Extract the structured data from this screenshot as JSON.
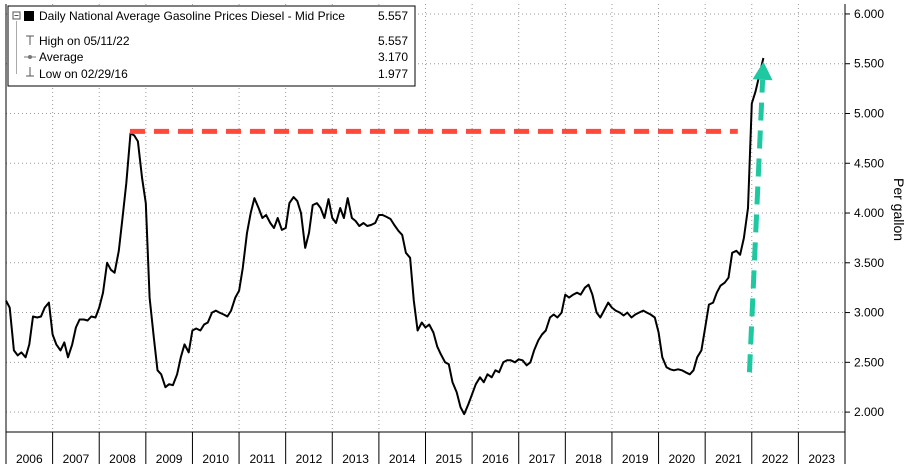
{
  "chart_data": {
    "type": "line",
    "ylabel": "Per gallon",
    "ylim": [
      1.8,
      6.1
    ],
    "yticks": [
      "2.000",
      "2.500",
      "3.000",
      "3.500",
      "4.000",
      "4.500",
      "5.000",
      "5.500",
      "6.000"
    ],
    "ytick_values": [
      2.0,
      2.5,
      3.0,
      3.5,
      4.0,
      4.5,
      5.0,
      5.5,
      6.0
    ],
    "xlim": [
      2005.5,
      2023.5
    ],
    "years": [
      "2006",
      "2007",
      "2008",
      "2009",
      "2010",
      "2011",
      "2012",
      "2013",
      "2014",
      "2015",
      "2016",
      "2017",
      "2018",
      "2019",
      "2020",
      "2021",
      "2022",
      "2023"
    ],
    "grid": true,
    "legend": {
      "position": "top-left",
      "title": "Daily National Average Gasoline Prices Diesel - Mid Price",
      "title_value": "5.557",
      "rows": [
        {
          "label": "High on 05/11/22",
          "value": "5.557"
        },
        {
          "label": "Average",
          "value": "3.170"
        },
        {
          "label": "Low on 02/29/16",
          "value": "1.977"
        }
      ]
    },
    "series": [
      {
        "color": "#000000",
        "points": [
          [
            2005.5,
            3.12
          ],
          [
            2005.58,
            3.05
          ],
          [
            2005.67,
            2.62
          ],
          [
            2005.75,
            2.57
          ],
          [
            2005.83,
            2.6
          ],
          [
            2005.92,
            2.55
          ],
          [
            2006.0,
            2.68
          ],
          [
            2006.08,
            2.96
          ],
          [
            2006.17,
            2.95
          ],
          [
            2006.25,
            2.96
          ],
          [
            2006.33,
            3.05
          ],
          [
            2006.42,
            3.1
          ],
          [
            2006.5,
            2.78
          ],
          [
            2006.58,
            2.68
          ],
          [
            2006.67,
            2.62
          ],
          [
            2006.75,
            2.7
          ],
          [
            2006.83,
            2.55
          ],
          [
            2006.92,
            2.68
          ],
          [
            2007.0,
            2.85
          ],
          [
            2007.08,
            2.93
          ],
          [
            2007.17,
            2.93
          ],
          [
            2007.25,
            2.92
          ],
          [
            2007.33,
            2.96
          ],
          [
            2007.42,
            2.95
          ],
          [
            2007.5,
            3.05
          ],
          [
            2007.58,
            3.2
          ],
          [
            2007.67,
            3.5
          ],
          [
            2007.75,
            3.43
          ],
          [
            2007.83,
            3.4
          ],
          [
            2007.92,
            3.62
          ],
          [
            2008.0,
            3.95
          ],
          [
            2008.08,
            4.3
          ],
          [
            2008.17,
            4.8
          ],
          [
            2008.25,
            4.78
          ],
          [
            2008.33,
            4.72
          ],
          [
            2008.42,
            4.35
          ],
          [
            2008.5,
            4.1
          ],
          [
            2008.58,
            3.15
          ],
          [
            2008.67,
            2.75
          ],
          [
            2008.75,
            2.42
          ],
          [
            2008.83,
            2.38
          ],
          [
            2008.92,
            2.25
          ],
          [
            2009.0,
            2.28
          ],
          [
            2009.08,
            2.27
          ],
          [
            2009.17,
            2.38
          ],
          [
            2009.25,
            2.55
          ],
          [
            2009.33,
            2.68
          ],
          [
            2009.42,
            2.6
          ],
          [
            2009.5,
            2.82
          ],
          [
            2009.58,
            2.84
          ],
          [
            2009.67,
            2.82
          ],
          [
            2009.75,
            2.88
          ],
          [
            2009.83,
            2.9
          ],
          [
            2009.92,
            3.0
          ],
          [
            2010.0,
            3.02
          ],
          [
            2010.08,
            3.0
          ],
          [
            2010.17,
            2.98
          ],
          [
            2010.25,
            2.96
          ],
          [
            2010.33,
            3.02
          ],
          [
            2010.42,
            3.15
          ],
          [
            2010.5,
            3.22
          ],
          [
            2010.58,
            3.45
          ],
          [
            2010.67,
            3.8
          ],
          [
            2010.75,
            4.0
          ],
          [
            2010.83,
            4.15
          ],
          [
            2010.92,
            4.05
          ],
          [
            2011.0,
            3.95
          ],
          [
            2011.08,
            3.98
          ],
          [
            2011.17,
            3.9
          ],
          [
            2011.25,
            3.85
          ],
          [
            2011.33,
            3.95
          ],
          [
            2011.42,
            3.83
          ],
          [
            2011.5,
            3.85
          ],
          [
            2011.58,
            4.1
          ],
          [
            2011.67,
            4.16
          ],
          [
            2011.75,
            4.12
          ],
          [
            2011.83,
            4.0
          ],
          [
            2011.92,
            3.65
          ],
          [
            2012.0,
            3.8
          ],
          [
            2012.08,
            4.08
          ],
          [
            2012.17,
            4.1
          ],
          [
            2012.25,
            4.05
          ],
          [
            2012.33,
            3.95
          ],
          [
            2012.42,
            4.14
          ],
          [
            2012.5,
            3.95
          ],
          [
            2012.58,
            3.9
          ],
          [
            2012.67,
            4.05
          ],
          [
            2012.75,
            3.95
          ],
          [
            2012.83,
            4.15
          ],
          [
            2012.92,
            3.95
          ],
          [
            2013.0,
            3.92
          ],
          [
            2013.08,
            3.87
          ],
          [
            2013.17,
            3.9
          ],
          [
            2013.25,
            3.87
          ],
          [
            2013.33,
            3.88
          ],
          [
            2013.42,
            3.9
          ],
          [
            2013.5,
            3.98
          ],
          [
            2013.58,
            3.98
          ],
          [
            2013.67,
            3.96
          ],
          [
            2013.75,
            3.94
          ],
          [
            2013.83,
            3.88
          ],
          [
            2013.92,
            3.82
          ],
          [
            2014.0,
            3.78
          ],
          [
            2014.08,
            3.6
          ],
          [
            2014.17,
            3.55
          ],
          [
            2014.25,
            3.12
          ],
          [
            2014.33,
            2.82
          ],
          [
            2014.42,
            2.9
          ],
          [
            2014.5,
            2.85
          ],
          [
            2014.58,
            2.88
          ],
          [
            2014.67,
            2.8
          ],
          [
            2014.75,
            2.66
          ],
          [
            2014.83,
            2.58
          ],
          [
            2014.92,
            2.5
          ],
          [
            2015.0,
            2.48
          ],
          [
            2015.08,
            2.3
          ],
          [
            2015.17,
            2.2
          ],
          [
            2015.25,
            2.05
          ],
          [
            2015.33,
            1.98
          ],
          [
            2015.42,
            2.08
          ],
          [
            2015.5,
            2.18
          ],
          [
            2015.58,
            2.28
          ],
          [
            2015.67,
            2.35
          ],
          [
            2015.75,
            2.3
          ],
          [
            2015.83,
            2.38
          ],
          [
            2015.92,
            2.35
          ],
          [
            2016.0,
            2.42
          ],
          [
            2016.08,
            2.4
          ],
          [
            2016.17,
            2.5
          ],
          [
            2016.25,
            2.52
          ],
          [
            2016.33,
            2.52
          ],
          [
            2016.42,
            2.5
          ],
          [
            2016.5,
            2.53
          ],
          [
            2016.58,
            2.52
          ],
          [
            2016.67,
            2.47
          ],
          [
            2016.75,
            2.5
          ],
          [
            2016.83,
            2.62
          ],
          [
            2016.92,
            2.72
          ],
          [
            2017.0,
            2.78
          ],
          [
            2017.08,
            2.82
          ],
          [
            2017.17,
            2.95
          ],
          [
            2017.25,
            2.98
          ],
          [
            2017.33,
            2.95
          ],
          [
            2017.42,
            3.0
          ],
          [
            2017.5,
            3.18
          ],
          [
            2017.58,
            3.15
          ],
          [
            2017.67,
            3.18
          ],
          [
            2017.75,
            3.2
          ],
          [
            2017.83,
            3.18
          ],
          [
            2017.92,
            3.25
          ],
          [
            2018.0,
            3.28
          ],
          [
            2018.08,
            3.18
          ],
          [
            2018.17,
            3.0
          ],
          [
            2018.25,
            2.95
          ],
          [
            2018.33,
            3.02
          ],
          [
            2018.42,
            3.1
          ],
          [
            2018.5,
            3.05
          ],
          [
            2018.58,
            3.02
          ],
          [
            2018.67,
            3.0
          ],
          [
            2018.75,
            2.97
          ],
          [
            2018.83,
            3.0
          ],
          [
            2018.92,
            2.95
          ],
          [
            2019.0,
            2.98
          ],
          [
            2019.08,
            3.0
          ],
          [
            2019.17,
            3.02
          ],
          [
            2019.25,
            3.0
          ],
          [
            2019.33,
            2.98
          ],
          [
            2019.42,
            2.95
          ],
          [
            2019.5,
            2.8
          ],
          [
            2019.58,
            2.55
          ],
          [
            2019.67,
            2.45
          ],
          [
            2019.75,
            2.43
          ],
          [
            2019.83,
            2.42
          ],
          [
            2019.92,
            2.43
          ],
          [
            2020.0,
            2.42
          ],
          [
            2020.08,
            2.4
          ],
          [
            2020.17,
            2.38
          ],
          [
            2020.25,
            2.42
          ],
          [
            2020.33,
            2.55
          ],
          [
            2020.42,
            2.62
          ],
          [
            2020.5,
            2.85
          ],
          [
            2020.58,
            3.08
          ],
          [
            2020.67,
            3.1
          ],
          [
            2020.75,
            3.2
          ],
          [
            2020.83,
            3.27
          ],
          [
            2020.92,
            3.3
          ],
          [
            2021.0,
            3.35
          ],
          [
            2021.08,
            3.6
          ],
          [
            2021.17,
            3.62
          ],
          [
            2021.25,
            3.58
          ],
          [
            2021.33,
            3.75
          ],
          [
            2021.42,
            4.05
          ],
          [
            2021.5,
            5.1
          ],
          [
            2021.58,
            5.22
          ],
          [
            2021.67,
            5.4
          ],
          [
            2021.75,
            5.557
          ]
        ]
      }
    ],
    "annotations": [
      {
        "kind": "dashed-horizontal",
        "color": "#ff4a3a",
        "y": 4.82,
        "x_start": 2008.16,
        "x_end": 2021.2
      },
      {
        "kind": "dashed-arrow-up",
        "color": "#1ec8a0",
        "x_start": 2021.45,
        "y_start": 2.4,
        "x_end": 2021.75,
        "y_end": 5.52
      }
    ]
  }
}
